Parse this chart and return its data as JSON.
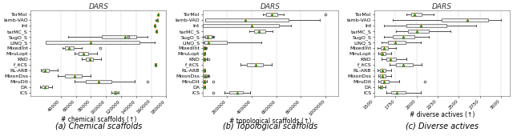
{
  "title": "DARS",
  "subtitle_a": "(a) Chemical scaffolds",
  "subtitle_b": "(b) Topological scaffolds",
  "subtitle_c": "(c) Diverse actives",
  "xlabel_a": "# chemical scaffolds (↑)",
  "xlabel_b": "# topological scaffolds (↑)",
  "xlabel_c": "# diverse actives (↑)",
  "y_labels": [
    "TorMol",
    "lamb-VAO",
    "Int",
    "tarMC_S",
    "SugO_S",
    "LINQ_S",
    "MixedInt",
    "MiruLopt",
    "KND",
    "f_itCS",
    "RL-ARB",
    "MixonDss",
    "MiruDit",
    "DA",
    "ICS"
  ],
  "chemical_scaffolds": {
    "whisker_low": [
      168500,
      166000,
      163500,
      165500,
      50000,
      20000,
      42000,
      58000,
      68000,
      164500,
      14000,
      36000,
      58000,
      13000,
      107000
    ],
    "q1": [
      169000,
      167500,
      164500,
      166500,
      95000,
      20000,
      46000,
      64000,
      73000,
      165500,
      16000,
      46000,
      73000,
      15000,
      110000
    ],
    "median": [
      169200,
      168000,
      165000,
      167000,
      125000,
      80000,
      51000,
      70000,
      78000,
      166000,
      19000,
      58000,
      90000,
      19000,
      112500
    ],
    "q3": [
      169500,
      168500,
      165500,
      167500,
      140000,
      145000,
      57000,
      76000,
      83000,
      166500,
      24000,
      68000,
      107000,
      23000,
      114500
    ],
    "whisker_high": [
      169800,
      169000,
      166000,
      168000,
      155000,
      165000,
      68000,
      88000,
      93000,
      167000,
      36000,
      80000,
      138000,
      29000,
      117000
    ],
    "outliers_x": [
      null,
      null,
      null,
      null,
      130000,
      null,
      92000,
      null,
      null,
      null,
      null,
      null,
      155000,
      null,
      null
    ],
    "xlim": [
      0,
      180000
    ],
    "xticks": [
      40000,
      60000,
      80000,
      100000,
      120000,
      140000,
      160000,
      180000
    ],
    "xtick_labels": [
      "40000",
      "60000",
      "80000",
      "100000",
      "120000",
      "140000",
      "160000",
      "180000"
    ]
  },
  "topological_scaffolds": {
    "whisker_low": [
      490000,
      20000,
      5000,
      380000,
      10000,
      10000,
      8000,
      8000,
      10000,
      310000,
      8000,
      8000,
      8000,
      8000,
      180000
    ],
    "q1": [
      520000,
      20000,
      5000,
      420000,
      20000,
      15000,
      12000,
      12000,
      12000,
      360000,
      10000,
      12000,
      12000,
      8000,
      220000
    ],
    "median": [
      560000,
      350000,
      400000,
      460000,
      45000,
      50000,
      16000,
      15000,
      18000,
      430000,
      14000,
      25000,
      18000,
      13000,
      280000
    ],
    "q3": [
      610000,
      700000,
      620000,
      510000,
      75000,
      200000,
      20000,
      18000,
      25000,
      490000,
      18000,
      35000,
      25000,
      17000,
      330000
    ],
    "whisker_high": [
      660000,
      950000,
      720000,
      570000,
      90000,
      480000,
      27000,
      22000,
      38000,
      560000,
      25000,
      48000,
      38000,
      22000,
      390000
    ],
    "outliers_x": [
      1000000,
      null,
      null,
      null,
      90000,
      null,
      30000,
      null,
      50000,
      null,
      null,
      50000,
      90000,
      null,
      90000
    ],
    "xlim": [
      0,
      1100000
    ],
    "xticks": [
      200000,
      400000,
      600000,
      800000,
      1000000
    ],
    "xtick_labels": [
      "200000",
      "400000",
      "600000",
      "800000",
      "1000000"
    ]
  },
  "diverse_actives": {
    "whisker_low": [
      1880,
      1720,
      1620,
      1760,
      1620,
      1590,
      1540,
      1545,
      1590,
      1680,
      1540,
      1545,
      1545,
      1545,
      1640
    ],
    "q1": [
      1940,
      2300,
      1880,
      1900,
      1720,
      1660,
      1580,
      1575,
      1640,
      1760,
      1570,
      1570,
      1575,
      1565,
      1700
    ],
    "median": [
      1980,
      2600,
      2050,
      2000,
      1840,
      1750,
      1620,
      1600,
      1690,
      1840,
      1600,
      1600,
      1620,
      1580,
      1770
    ],
    "q3": [
      2060,
      2850,
      2350,
      2150,
      1980,
      1870,
      1660,
      1630,
      1760,
      1960,
      1630,
      1630,
      1670,
      1600,
      1870
    ],
    "whisker_high": [
      2200,
      3000,
      2700,
      2400,
      2150,
      2050,
      1760,
      1700,
      1880,
      2060,
      1700,
      1700,
      1800,
      1635,
      2050
    ],
    "outliers_x": [
      null,
      null,
      null,
      null,
      null,
      null,
      null,
      null,
      null,
      null,
      null,
      null,
      2100,
      null,
      null
    ],
    "xlim": [
      1500,
      3100
    ],
    "xticks": [
      1500,
      1750,
      2000,
      2250,
      2500,
      2750,
      3000
    ],
    "xtick_labels": [
      "1500",
      "1750",
      "2000",
      "2250",
      "2500",
      "2750",
      "3000"
    ]
  },
  "box_facecolor": "#f0f0f0",
  "median_color": "#ff8c00",
  "mean_marker_color": "#2ca02c",
  "whisker_color": "#333333",
  "flier_color": "#333333",
  "box_edgecolor": "#555555",
  "background_color": "#ffffff",
  "grid_color": "#cccccc",
  "title_color": "#333333",
  "label_fontsize": 4.5,
  "tick_fontsize": 4.2,
  "xlabel_fontsize": 5.5,
  "subtitle_fontsize": 7.0,
  "title_fontsize": 6.5
}
